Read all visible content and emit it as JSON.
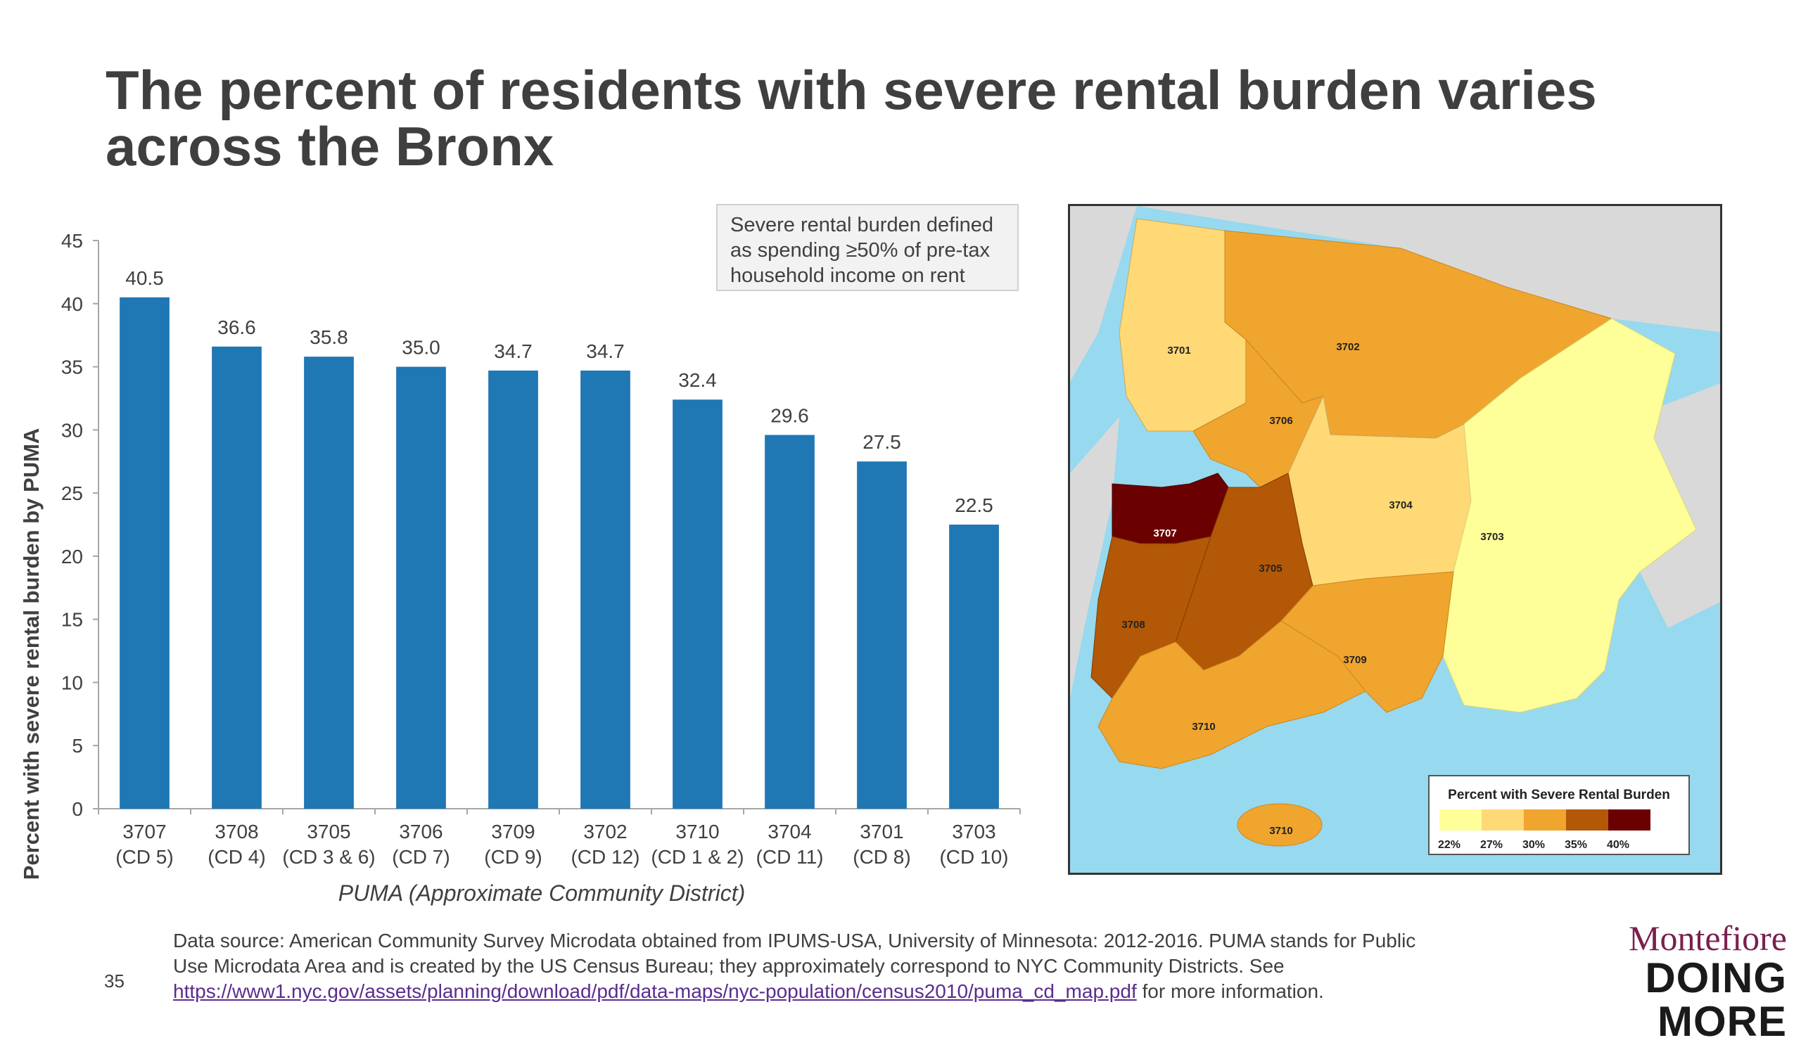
{
  "title": {
    "line1": "The percent of residents with severe rental burden varies",
    "line2": "across the Bronx"
  },
  "note": {
    "line1": "Severe rental burden defined",
    "line2": "as spending ≥50% of pre-tax",
    "line3": "household income on rent"
  },
  "chart_data": {
    "type": "bar",
    "categories": [
      "3707",
      "3708",
      "3705",
      "3706",
      "3709",
      "3702",
      "3710",
      "3704",
      "3701",
      "3703"
    ],
    "category_sublabels": [
      "(CD 5)",
      "(CD 4)",
      "(CD 3 & 6)",
      "(CD 7)",
      "(CD 9)",
      "(CD 12)",
      "(CD 1 & 2)",
      "(CD 11)",
      "(CD 8)",
      "(CD 10)"
    ],
    "values": [
      40.5,
      36.6,
      35.8,
      35.0,
      34.7,
      34.7,
      32.4,
      29.6,
      27.5,
      22.5
    ],
    "value_labels": [
      "40.5",
      "36.6",
      "35.8",
      "35.0",
      "34.7",
      "34.7",
      "32.4",
      "29.6",
      "27.5",
      "22.5"
    ],
    "ylabel": "Percent with severe rental burden by PUMA",
    "xlabel": "PUMA (Approximate Community District)",
    "ylim": [
      0,
      45
    ],
    "yticks": [
      "0",
      "5",
      "10",
      "15",
      "20",
      "25",
      "30",
      "35",
      "40",
      "45"
    ],
    "bar_color": "#1f77b4",
    "grid": false
  },
  "map": {
    "district_labels": [
      "3701",
      "3702",
      "3703",
      "3704",
      "3705",
      "3706",
      "3707",
      "3708",
      "3709",
      "3710",
      "3710"
    ],
    "legend_title": "Percent with Severe Rental Burden",
    "legend_ticks": [
      "22%",
      "27%",
      "30%",
      "35%",
      "40%"
    ],
    "legend_colors": [
      "#ffff99",
      "#fed976",
      "#f0a52e",
      "#b35806",
      "#6b0000"
    ],
    "water_color": "#97d9ef",
    "land_color": "#d9d9d9"
  },
  "footer": {
    "text1": "Data source: American Community Survey Microdata obtained from IPUMS-USA, University of Minnesota: 2012-2016. PUMA stands for Public",
    "text2": "Use Microdata Area and is created by the US Census Bureau; they approximately correspond to NYC Community Districts. See",
    "link": "https://www1.nyc.gov/assets/planning/download/pdf/data-maps/nyc-population/census2010/puma_cd_map.pdf",
    "text3": " for more information."
  },
  "page_number": "35",
  "logo": {
    "top": "Montefiore",
    "bottom": "DOING MORE"
  }
}
